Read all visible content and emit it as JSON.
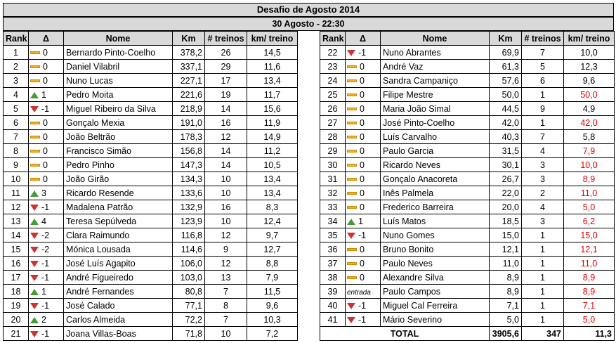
{
  "title": "Desafio de Agosto 2014",
  "subtitle": "30 Agosto - 22:30",
  "columns": [
    "Rank",
    "Δ",
    "Nome",
    "Km",
    "# treinos",
    "km/ treino"
  ],
  "colors": {
    "up": "#4a9a3a",
    "down": "#cc3333",
    "same": "#f2b021",
    "highlight": "#e00000",
    "header_bg": "#d9d9d9"
  },
  "left_rows": [
    {
      "rank": "1",
      "trend": "same",
      "delta": "0",
      "name": "Bernardo Pinto-Coelho",
      "km": "378,2",
      "treinos": "26",
      "kmt": "14,5",
      "red": false
    },
    {
      "rank": "2",
      "trend": "same",
      "delta": "0",
      "name": "Daniel Vilabril",
      "km": "337,1",
      "treinos": "29",
      "kmt": "11,6",
      "red": false
    },
    {
      "rank": "3",
      "trend": "same",
      "delta": "0",
      "name": "Nuno Lucas",
      "km": "227,1",
      "treinos": "17",
      "kmt": "13,4",
      "red": false
    },
    {
      "rank": "4",
      "trend": "up",
      "delta": "1",
      "name": "Pedro Moita",
      "km": "221,6",
      "treinos": "19",
      "kmt": "11,7",
      "red": false
    },
    {
      "rank": "5",
      "trend": "down",
      "delta": "-1",
      "name": "Miguel Ribeiro da Silva",
      "km": "218,9",
      "treinos": "14",
      "kmt": "15,6",
      "red": false
    },
    {
      "rank": "6",
      "trend": "same",
      "delta": "0",
      "name": "Gonçalo Mexia",
      "km": "191,0",
      "treinos": "16",
      "kmt": "11,9",
      "red": false
    },
    {
      "rank": "7",
      "trend": "same",
      "delta": "0",
      "name": "João Beltrão",
      "km": "178,3",
      "treinos": "12",
      "kmt": "14,9",
      "red": false
    },
    {
      "rank": "8",
      "trend": "same",
      "delta": "0",
      "name": "Francisco Simão",
      "km": "156,8",
      "treinos": "14",
      "kmt": "11,2",
      "red": false
    },
    {
      "rank": "9",
      "trend": "same",
      "delta": "0",
      "name": "Pedro Pinho",
      "km": "147,3",
      "treinos": "14",
      "kmt": "10,5",
      "red": false
    },
    {
      "rank": "10",
      "trend": "same",
      "delta": "0",
      "name": "João Girão",
      "km": "134,3",
      "treinos": "10",
      "kmt": "13,4",
      "red": false
    },
    {
      "rank": "11",
      "trend": "up",
      "delta": "3",
      "name": "Ricardo Resende",
      "km": "133,6",
      "treinos": "10",
      "kmt": "13,4",
      "red": false
    },
    {
      "rank": "12",
      "trend": "down",
      "delta": "-1",
      "name": "Madalena Patrão",
      "km": "132,9",
      "treinos": "16",
      "kmt": "8,3",
      "red": false
    },
    {
      "rank": "13",
      "trend": "up",
      "delta": "4",
      "name": "Teresa Sepúlveda",
      "km": "123,9",
      "treinos": "10",
      "kmt": "12,4",
      "red": false
    },
    {
      "rank": "14",
      "trend": "down",
      "delta": "-2",
      "name": "Clara Raimundo",
      "km": "116,8",
      "treinos": "12",
      "kmt": "9,7",
      "red": false
    },
    {
      "rank": "15",
      "trend": "down",
      "delta": "-2",
      "name": "Mónica Lousada",
      "km": "114,6",
      "treinos": "9",
      "kmt": "12,7",
      "red": false
    },
    {
      "rank": "16",
      "trend": "down",
      "delta": "-1",
      "name": "José Luís Agapito",
      "km": "106,0",
      "treinos": "12",
      "kmt": "8,8",
      "red": false
    },
    {
      "rank": "17",
      "trend": "down",
      "delta": "-1",
      "name": "André Figueiredo",
      "km": "103,0",
      "treinos": "13",
      "kmt": "7,9",
      "red": false
    },
    {
      "rank": "18",
      "trend": "up",
      "delta": "1",
      "name": "André Fernandes",
      "km": "80,8",
      "treinos": "7",
      "kmt": "11,5",
      "red": false
    },
    {
      "rank": "19",
      "trend": "down",
      "delta": "-1",
      "name": "José Calado",
      "km": "77,1",
      "treinos": "8",
      "kmt": "9,6",
      "red": false
    },
    {
      "rank": "20",
      "trend": "up",
      "delta": "2",
      "name": "Carlos Almeida",
      "km": "72,2",
      "treinos": "7",
      "kmt": "10,3",
      "red": false
    },
    {
      "rank": "21",
      "trend": "down",
      "delta": "-1",
      "name": "Joana Villas-Boas",
      "km": "71,8",
      "treinos": "10",
      "kmt": "7,2",
      "red": false
    }
  ],
  "right_rows": [
    {
      "rank": "22",
      "trend": "down",
      "delta": "-1",
      "name": "Nuno Abrantes",
      "km": "69,9",
      "treinos": "7",
      "kmt": "10,0",
      "red": false
    },
    {
      "rank": "23",
      "trend": "same",
      "delta": "0",
      "name": "André Vaz",
      "km": "61,3",
      "treinos": "5",
      "kmt": "12,3",
      "red": false
    },
    {
      "rank": "24",
      "trend": "same",
      "delta": "0",
      "name": "Sandra Campaniço",
      "km": "57,6",
      "treinos": "6",
      "kmt": "9,6",
      "red": false
    },
    {
      "rank": "25",
      "trend": "same",
      "delta": "0",
      "name": "Filipe Mestre",
      "km": "50,0",
      "treinos": "1",
      "kmt": "50,0",
      "red": true
    },
    {
      "rank": "26",
      "trend": "same",
      "delta": "0",
      "name": "Maria João Simal",
      "km": "44,5",
      "treinos": "9",
      "kmt": "4,9",
      "red": false
    },
    {
      "rank": "27",
      "trend": "same",
      "delta": "0",
      "name": "José Pinto-Coelho",
      "km": "42,0",
      "treinos": "1",
      "kmt": "42,0",
      "red": true
    },
    {
      "rank": "28",
      "trend": "same",
      "delta": "0",
      "name": "Luís Carvalho",
      "km": "40,3",
      "treinos": "7",
      "kmt": "5,8",
      "red": false
    },
    {
      "rank": "29",
      "trend": "same",
      "delta": "0",
      "name": "Paulo Garcia",
      "km": "31,5",
      "treinos": "4",
      "kmt": "7,9",
      "red": true
    },
    {
      "rank": "30",
      "trend": "same",
      "delta": "0",
      "name": "Ricardo Neves",
      "km": "30,1",
      "treinos": "3",
      "kmt": "10,0",
      "red": true
    },
    {
      "rank": "31",
      "trend": "same",
      "delta": "0",
      "name": "Gonçalo Anacoreta",
      "km": "26,7",
      "treinos": "3",
      "kmt": "8,9",
      "red": true
    },
    {
      "rank": "32",
      "trend": "same",
      "delta": "0",
      "name": "Inês Palmela",
      "km": "22,0",
      "treinos": "2",
      "kmt": "11,0",
      "red": true
    },
    {
      "rank": "33",
      "trend": "same",
      "delta": "0",
      "name": "Frederico Barreira",
      "km": "20,0",
      "treinos": "4",
      "kmt": "5,0",
      "red": true
    },
    {
      "rank": "34",
      "trend": "up",
      "delta": "1",
      "name": "Luís Matos",
      "km": "18,5",
      "treinos": "3",
      "kmt": "6,2",
      "red": true
    },
    {
      "rank": "35",
      "trend": "down",
      "delta": "-1",
      "name": "Nuno Gomes",
      "km": "15,0",
      "treinos": "1",
      "kmt": "15,0",
      "red": true
    },
    {
      "rank": "36",
      "trend": "same",
      "delta": "0",
      "name": "Bruno Bonito",
      "km": "12,1",
      "treinos": "1",
      "kmt": "12,1",
      "red": true
    },
    {
      "rank": "37",
      "trend": "same",
      "delta": "0",
      "name": "Paulo Neves",
      "km": "11,0",
      "treinos": "1",
      "kmt": "11,0",
      "red": true
    },
    {
      "rank": "38",
      "trend": "same",
      "delta": "0",
      "name": "Alexandre Silva",
      "km": "8,9",
      "treinos": "1",
      "kmt": "8,9",
      "red": true
    },
    {
      "rank": "39",
      "trend": "entry",
      "delta": "entrada",
      "name": "Paulo Campos",
      "km": "8,9",
      "treinos": "1",
      "kmt": "8,9",
      "red": true
    },
    {
      "rank": "40",
      "trend": "down",
      "delta": "-1",
      "name": "Miguel Cal Ferreira",
      "km": "7,1",
      "treinos": "1",
      "kmt": "7,1",
      "red": true
    },
    {
      "rank": "41",
      "trend": "down",
      "delta": "-1",
      "name": "Mário Severino",
      "km": "5,0",
      "treinos": "1",
      "kmt": "5,0",
      "red": true
    }
  ],
  "total": {
    "label": "TOTAL",
    "km": "3905,6",
    "treinos": "347",
    "kmt": "11,3"
  }
}
